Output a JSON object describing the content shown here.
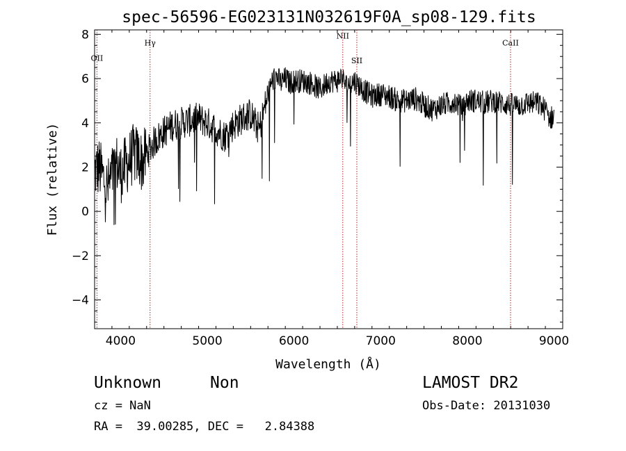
{
  "chart_data": {
    "type": "line",
    "title": "spec-56596-EG023131N032619F0A_sp08-129.fits",
    "xlabel": "Wavelength (Å)",
    "ylabel": "Flux (relative)",
    "xlim": [
      3700,
      9100
    ],
    "ylim": [
      -5.3,
      8.2
    ],
    "x_ticks": [
      4000,
      5000,
      6000,
      7000,
      8000,
      9000
    ],
    "x_tick_labels": [
      "4000",
      "5000",
      "6000",
      "7000",
      "8000",
      "9000"
    ],
    "y_ticks": [
      -4,
      -2,
      0,
      2,
      4,
      6,
      8
    ],
    "y_tick_labels": [
      "−4",
      "−2",
      "0",
      "2",
      "4",
      "6",
      "8"
    ],
    "grid": false,
    "line_color": "#000000",
    "marker_color": "#b22222",
    "lines": [
      {
        "label": "OII",
        "wavelength": 3727,
        "label_y": 6.8
      },
      {
        "label": "Hγ",
        "wavelength": 4340,
        "label_y": 7.5
      },
      {
        "label": "NII",
        "wavelength": 6563,
        "label_y": 7.8
      },
      {
        "label": "SII",
        "wavelength": 6725,
        "label_y": 6.7
      },
      {
        "label": "CaII",
        "wavelength": 8498,
        "label_y": 7.5
      }
    ],
    "series": [
      {
        "x": [
          3700,
          3750,
          3800,
          3850,
          3900,
          3950,
          4000,
          4050,
          4100,
          4150,
          4200,
          4250,
          4300,
          4350,
          4400,
          4450,
          4500,
          4600,
          4700,
          4800,
          4900,
          5000,
          5100,
          5200,
          5300,
          5400,
          5500,
          5550,
          5600,
          5650,
          5700,
          5750,
          5800,
          5850,
          5900,
          5950,
          6000,
          6100,
          6200,
          6300,
          6400,
          6500,
          6550,
          6600,
          6700,
          6800,
          6900,
          7000,
          7100,
          7200,
          7300,
          7400,
          7500,
          7600,
          7700,
          7800,
          7850,
          7900,
          7950,
          8000,
          8100,
          8200,
          8300,
          8400,
          8500,
          8600,
          8700,
          8800,
          8900,
          8950,
          9000
        ],
        "y": [
          1.8,
          2.0,
          1.5,
          1.0,
          1.6,
          2.2,
          1.7,
          2.0,
          2.3,
          2.6,
          2.5,
          2.2,
          2.6,
          2.9,
          3.2,
          3.4,
          3.6,
          3.9,
          4.0,
          4.1,
          4.2,
          4.0,
          3.7,
          3.4,
          3.9,
          4.2,
          4.4,
          4.0,
          3.7,
          4.5,
          5.3,
          5.9,
          6.1,
          5.8,
          6.0,
          5.8,
          5.9,
          5.9,
          5.8,
          5.5,
          5.9,
          5.9,
          6.1,
          5.7,
          5.9,
          5.5,
          5.2,
          5.3,
          5.2,
          5.0,
          5.0,
          5.1,
          4.8,
          4.6,
          4.8,
          4.9,
          5.0,
          4.8,
          4.6,
          5.0,
          5.0,
          4.9,
          5.0,
          4.9,
          4.8,
          4.8,
          4.9,
          4.9,
          4.6,
          4.2,
          4.3
        ]
      }
    ]
  },
  "info": {
    "object_class": "Unknown",
    "subclass": "Non",
    "survey": "LAMOST DR2",
    "cz": "cz = NaN",
    "obs_date": "Obs-Date: 20131030",
    "coords": "RA =  39.00285, DEC =   2.84388"
  }
}
